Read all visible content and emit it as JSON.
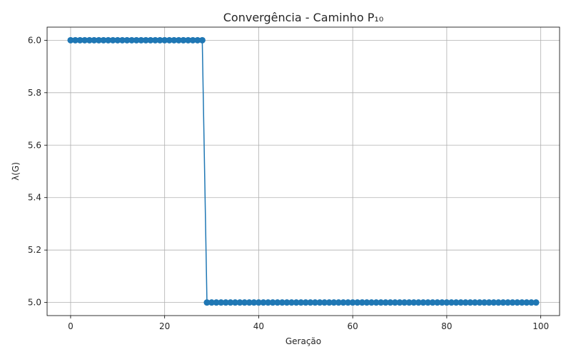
{
  "chart_data": {
    "type": "line",
    "title": "Convergência - Caminho P₁₀",
    "xlabel": "Geração",
    "ylabel": "λ(G)",
    "xlim": [
      -5,
      104
    ],
    "ylim": [
      4.95,
      6.05
    ],
    "xticks": [
      0,
      20,
      40,
      60,
      80,
      100
    ],
    "yticks": [
      5.0,
      5.2,
      5.4,
      5.6,
      5.8,
      6.0
    ],
    "ytick_labels": [
      "5.0",
      "5.2",
      "5.4",
      "5.6",
      "5.8",
      "6.0"
    ],
    "grid": true,
    "series": [
      {
        "color": "#1f77b4",
        "marker": "circle",
        "segments": [
          {
            "x_start": 0,
            "x_end": 28,
            "y": 6.0
          },
          {
            "x_start": 29,
            "x_end": 99,
            "y": 5.0
          }
        ]
      }
    ]
  }
}
